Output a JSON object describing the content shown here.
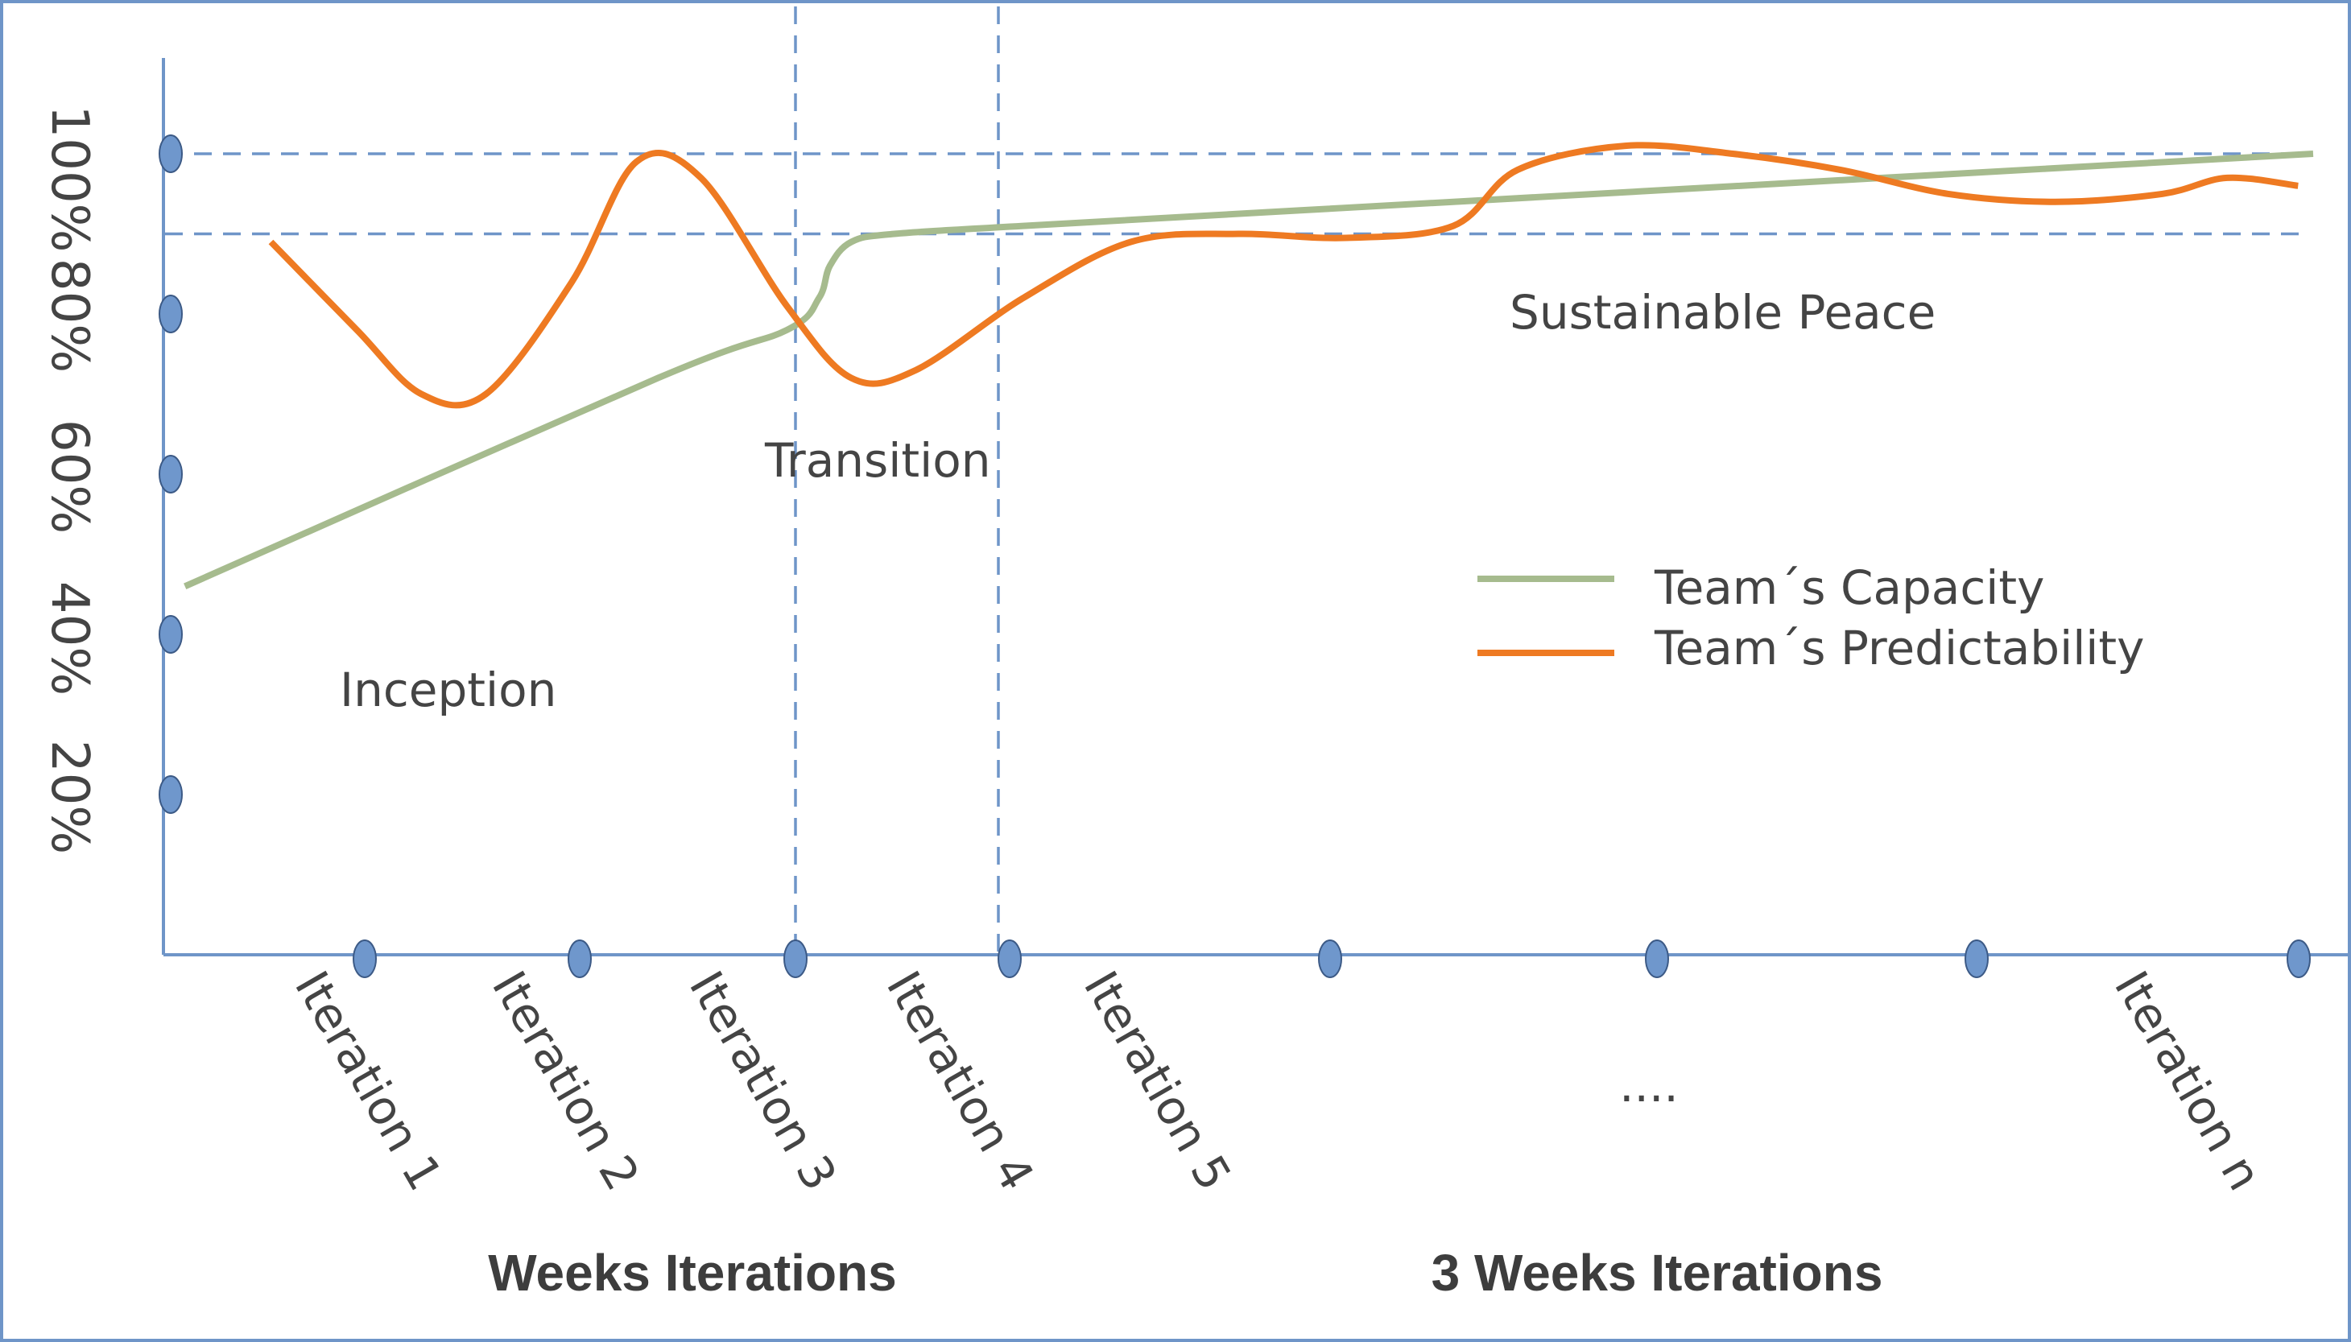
{
  "colors": {
    "capacity": "#a6bb8e",
    "predictability": "#ee7a22",
    "axis": "#6f95c8",
    "marker": "#6f97cc",
    "text": "#444444"
  },
  "chart_data": {
    "type": "line",
    "title": "",
    "xlabel": "",
    "ylabel": "",
    "ylim": [
      0,
      100
    ],
    "y_ticks": [
      "20%",
      "40%",
      "60%",
      "80%",
      "100%"
    ],
    "x_ticks": [
      "Iteration 1",
      "Iteration 2",
      "Iteration 3",
      "Iteration 4",
      "Iteration 5",
      "Iteration n"
    ],
    "x_ellipsis": "....",
    "reference_lines": {
      "horizontal": [
        100,
        90
      ],
      "vertical_after_iteration": [
        3,
        4
      ]
    },
    "phases": [
      "Inception",
      "Transition",
      "Sustainable Peace"
    ],
    "groups": [
      "Weeks Iterations",
      "3 Weeks Iterations"
    ],
    "legend": {
      "position": "right",
      "entries": [
        "Team´s Capacity",
        "Team´s Predictability"
      ]
    },
    "series": [
      {
        "name": "Team´s Capacity",
        "x": [
          0.1,
          2.3,
          2.9,
          3.05,
          3.1,
          3.2,
          3.4,
          4.0,
          6.0,
          8.0,
          10.0
        ],
        "values": [
          46,
          72,
          78,
          82,
          86,
          89,
          90,
          91,
          94,
          97,
          100
        ]
      },
      {
        "name": "Team´s Predictability",
        "x": [
          0.5,
          0.9,
          1.2,
          1.5,
          1.9,
          2.2,
          2.5,
          2.9,
          3.2,
          3.5,
          4.0,
          4.5,
          5.0,
          5.5,
          6.0,
          6.3,
          6.8,
          7.3,
          7.8,
          8.3,
          8.8,
          9.3,
          9.6,
          9.93
        ],
        "values": [
          89,
          78,
          70,
          70,
          84,
          99,
          97,
          81,
          72,
          73,
          82,
          89,
          90,
          89.5,
          91,
          98,
          101,
          100,
          98,
          95,
          94,
          95,
          97,
          96
        ]
      }
    ]
  }
}
